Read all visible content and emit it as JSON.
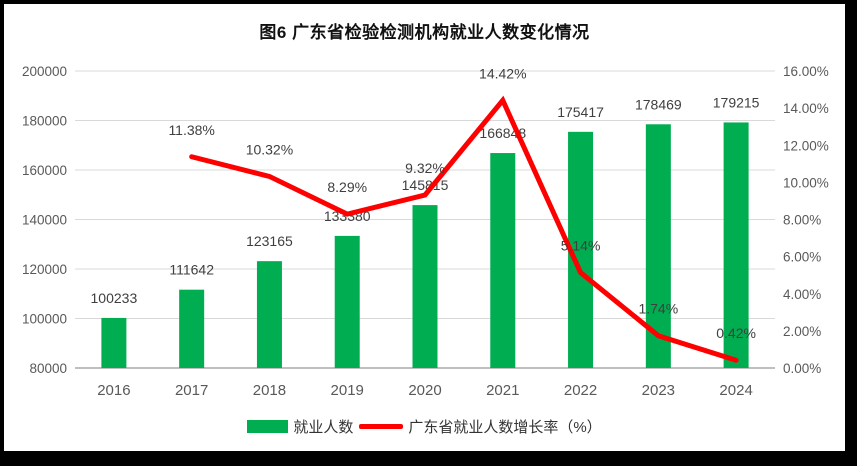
{
  "window": {
    "frame_color": "#000000",
    "canvas_color": "#ffffff"
  },
  "title": "图6  广东省检验检测机构就业人数变化情况",
  "chart_data": {
    "type": "bar",
    "subtype": "combo-bar-line",
    "title": "图6  广东省检验检测机构就业人数变化情况",
    "categories": [
      "2016",
      "2017",
      "2018",
      "2019",
      "2020",
      "2021",
      "2022",
      "2023",
      "2024"
    ],
    "series": [
      {
        "name": "就业人数",
        "type": "bar",
        "axis": "left",
        "color": "#00AD50",
        "values": [
          100233,
          111642,
          123165,
          133380,
          145815,
          166848,
          175417,
          178469,
          179215
        ],
        "labels": [
          "100233",
          "111642",
          "123165",
          "133380",
          "145815",
          "166848",
          "175417",
          "178469",
          "179215"
        ]
      },
      {
        "name": "广东省就业人数增长率（%）",
        "type": "line",
        "axis": "right",
        "color": "#FE0000",
        "values": [
          null,
          11.38,
          10.32,
          8.29,
          9.32,
          14.42,
          5.14,
          1.74,
          0.42
        ],
        "labels": [
          null,
          "11.38%",
          "10.32%",
          "8.29%",
          "9.32%",
          "14.42%",
          "5.14%",
          "1.74%",
          "0.42%"
        ]
      }
    ],
    "left_axis": {
      "min": 80000,
      "max": 200000,
      "step": 20000,
      "tick_labels": [
        "80000",
        "100000",
        "120000",
        "140000",
        "160000",
        "180000",
        "200000"
      ]
    },
    "right_axis": {
      "min": 0,
      "max": 16,
      "step": 2,
      "tick_labels": [
        "0.00%",
        "2.00%",
        "4.00%",
        "6.00%",
        "8.00%",
        "10.00%",
        "12.00%",
        "14.00%",
        "16.00%"
      ]
    },
    "grid": true,
    "legend_position": "bottom",
    "styles": {
      "grid_color": "#D9D9D9",
      "axis_line_color": "#BFBFBF",
      "tick_text_color": "#595959",
      "data_label_color": "#3F3F3F"
    }
  },
  "legend": {
    "items": [
      {
        "label": "就业人数",
        "swatch": "bar",
        "color": "#00AD50"
      },
      {
        "label": "广东省就业人数增长率（%）",
        "swatch": "line",
        "color": "#FE0000"
      }
    ]
  }
}
